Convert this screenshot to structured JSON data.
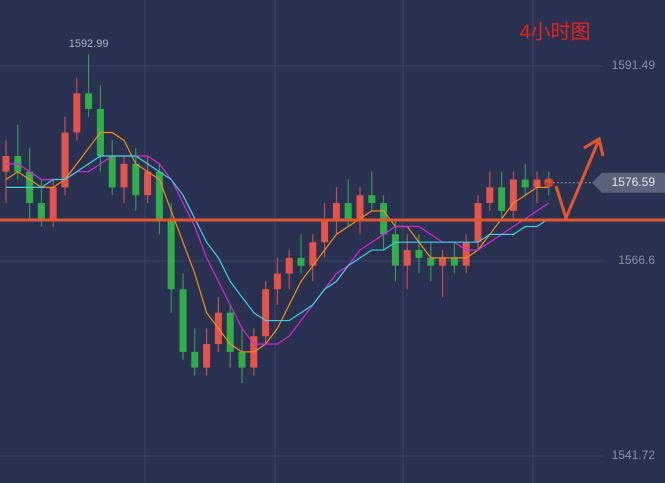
{
  "chart_data": {
    "type": "candlestick",
    "title": "4小时图",
    "ylim": [
      1538.27,
      1599.91
    ],
    "yticks": [
      1541.72,
      1566.6,
      1591.49
    ],
    "up_color": "#e2544c",
    "down_color": "#2fae4a",
    "ohlc": [
      [
        1578,
        1582,
        1574,
        1580
      ],
      [
        1580,
        1584,
        1577,
        1578
      ],
      [
        1578,
        1581,
        1572,
        1574
      ],
      [
        1574,
        1577,
        1571,
        1572
      ],
      [
        1572,
        1577,
        1571,
        1576
      ],
      [
        1576,
        1585,
        1575,
        1583
      ],
      [
        1583,
        1590,
        1582,
        1588
      ],
      [
        1588,
        1592.99,
        1585,
        1586
      ],
      [
        1586,
        1589,
        1578,
        1580
      ],
      [
        1580,
        1582,
        1575,
        1576
      ],
      [
        1576,
        1580,
        1574,
        1579
      ],
      [
        1579,
        1581,
        1573,
        1575
      ],
      [
        1575,
        1580,
        1574,
        1578
      ],
      [
        1578,
        1579,
        1570,
        1572
      ],
      [
        1572,
        1574,
        1560,
        1563
      ],
      [
        1563,
        1565,
        1554,
        1555
      ],
      [
        1555,
        1558,
        1552,
        1553
      ],
      [
        1553,
        1558,
        1552,
        1556
      ],
      [
        1556,
        1562,
        1555,
        1560
      ],
      [
        1560,
        1561,
        1553,
        1555
      ],
      [
        1555,
        1558,
        1551,
        1553
      ],
      [
        1553,
        1558,
        1552,
        1557
      ],
      [
        1557,
        1564,
        1556,
        1563
      ],
      [
        1563,
        1567,
        1561,
        1565
      ],
      [
        1565,
        1568,
        1563,
        1567
      ],
      [
        1567,
        1570,
        1565,
        1566
      ],
      [
        1566,
        1570,
        1564,
        1569
      ],
      [
        1569,
        1574,
        1567,
        1572
      ],
      [
        1572,
        1576,
        1570,
        1574
      ],
      [
        1574,
        1577,
        1571,
        1572
      ],
      [
        1572,
        1576,
        1570,
        1575
      ],
      [
        1575,
        1578,
        1573,
        1574
      ],
      [
        1574,
        1575,
        1568,
        1570
      ],
      [
        1570,
        1572,
        1564,
        1566
      ],
      [
        1566,
        1570,
        1563,
        1568
      ],
      [
        1568,
        1570,
        1565,
        1567
      ],
      [
        1567,
        1569,
        1564,
        1566
      ],
      [
        1566,
        1568,
        1562,
        1567
      ],
      [
        1567,
        1569,
        1565,
        1566
      ],
      [
        1566,
        1570,
        1565,
        1569
      ],
      [
        1569,
        1575,
        1568,
        1574
      ],
      [
        1574,
        1578,
        1573,
        1576
      ],
      [
        1576,
        1578,
        1572,
        1573
      ],
      [
        1573,
        1578,
        1572,
        1577
      ],
      [
        1577,
        1579,
        1575,
        1576
      ],
      [
        1576,
        1578,
        1574,
        1577
      ],
      [
        1577,
        1578,
        1575,
        1576.59
      ]
    ],
    "series": [
      {
        "color": "#f0901e",
        "values": [
          1577,
          1578,
          1577,
          1576,
          1576,
          1577,
          1579,
          1581,
          1583,
          1583,
          1582,
          1579,
          1578,
          1577,
          1573,
          1569,
          1565,
          1560,
          1558,
          1556,
          1555,
          1555,
          1556,
          1558,
          1561,
          1564,
          1566,
          1568,
          1570,
          1571,
          1572,
          1573,
          1573,
          1571,
          1571,
          1569,
          1567,
          1567,
          1567,
          1567,
          1568,
          1570,
          1572,
          1574,
          1575,
          1576,
          1576
        ]
      },
      {
        "color": "#d42ad8",
        "values": [
          1579,
          1579,
          1578,
          1577,
          1577,
          1577,
          1578,
          1578,
          1579,
          1580,
          1580,
          1580,
          1580,
          1579,
          1577,
          1574,
          1571,
          1567,
          1564,
          1561,
          1558,
          1556,
          1556,
          1556,
          1557,
          1559,
          1561,
          1563,
          1565,
          1566,
          1568,
          1569,
          1570,
          1571,
          1571,
          1571,
          1570,
          1569,
          1569,
          1568,
          1568,
          1569,
          1570,
          1571,
          1572,
          1573,
          1574
        ]
      },
      {
        "color": "#3fd0e0",
        "values": [
          1576,
          1576,
          1576,
          1576,
          1577,
          1577,
          1578,
          1579,
          1580,
          1580,
          1580,
          1580,
          1579,
          1578,
          1577,
          1575,
          1572,
          1569,
          1567,
          1564,
          1562,
          1560,
          1559,
          1559,
          1559,
          1560,
          1561,
          1563,
          1564,
          1566,
          1567,
          1568,
          1568,
          1569,
          1569,
          1569,
          1569,
          1569,
          1569,
          1569,
          1569,
          1570,
          1570,
          1570,
          1571,
          1571,
          1572
        ]
      }
    ],
    "level_line": 1571.83,
    "level_color": "#e4572e",
    "current_price": 1576.59
  }
}
